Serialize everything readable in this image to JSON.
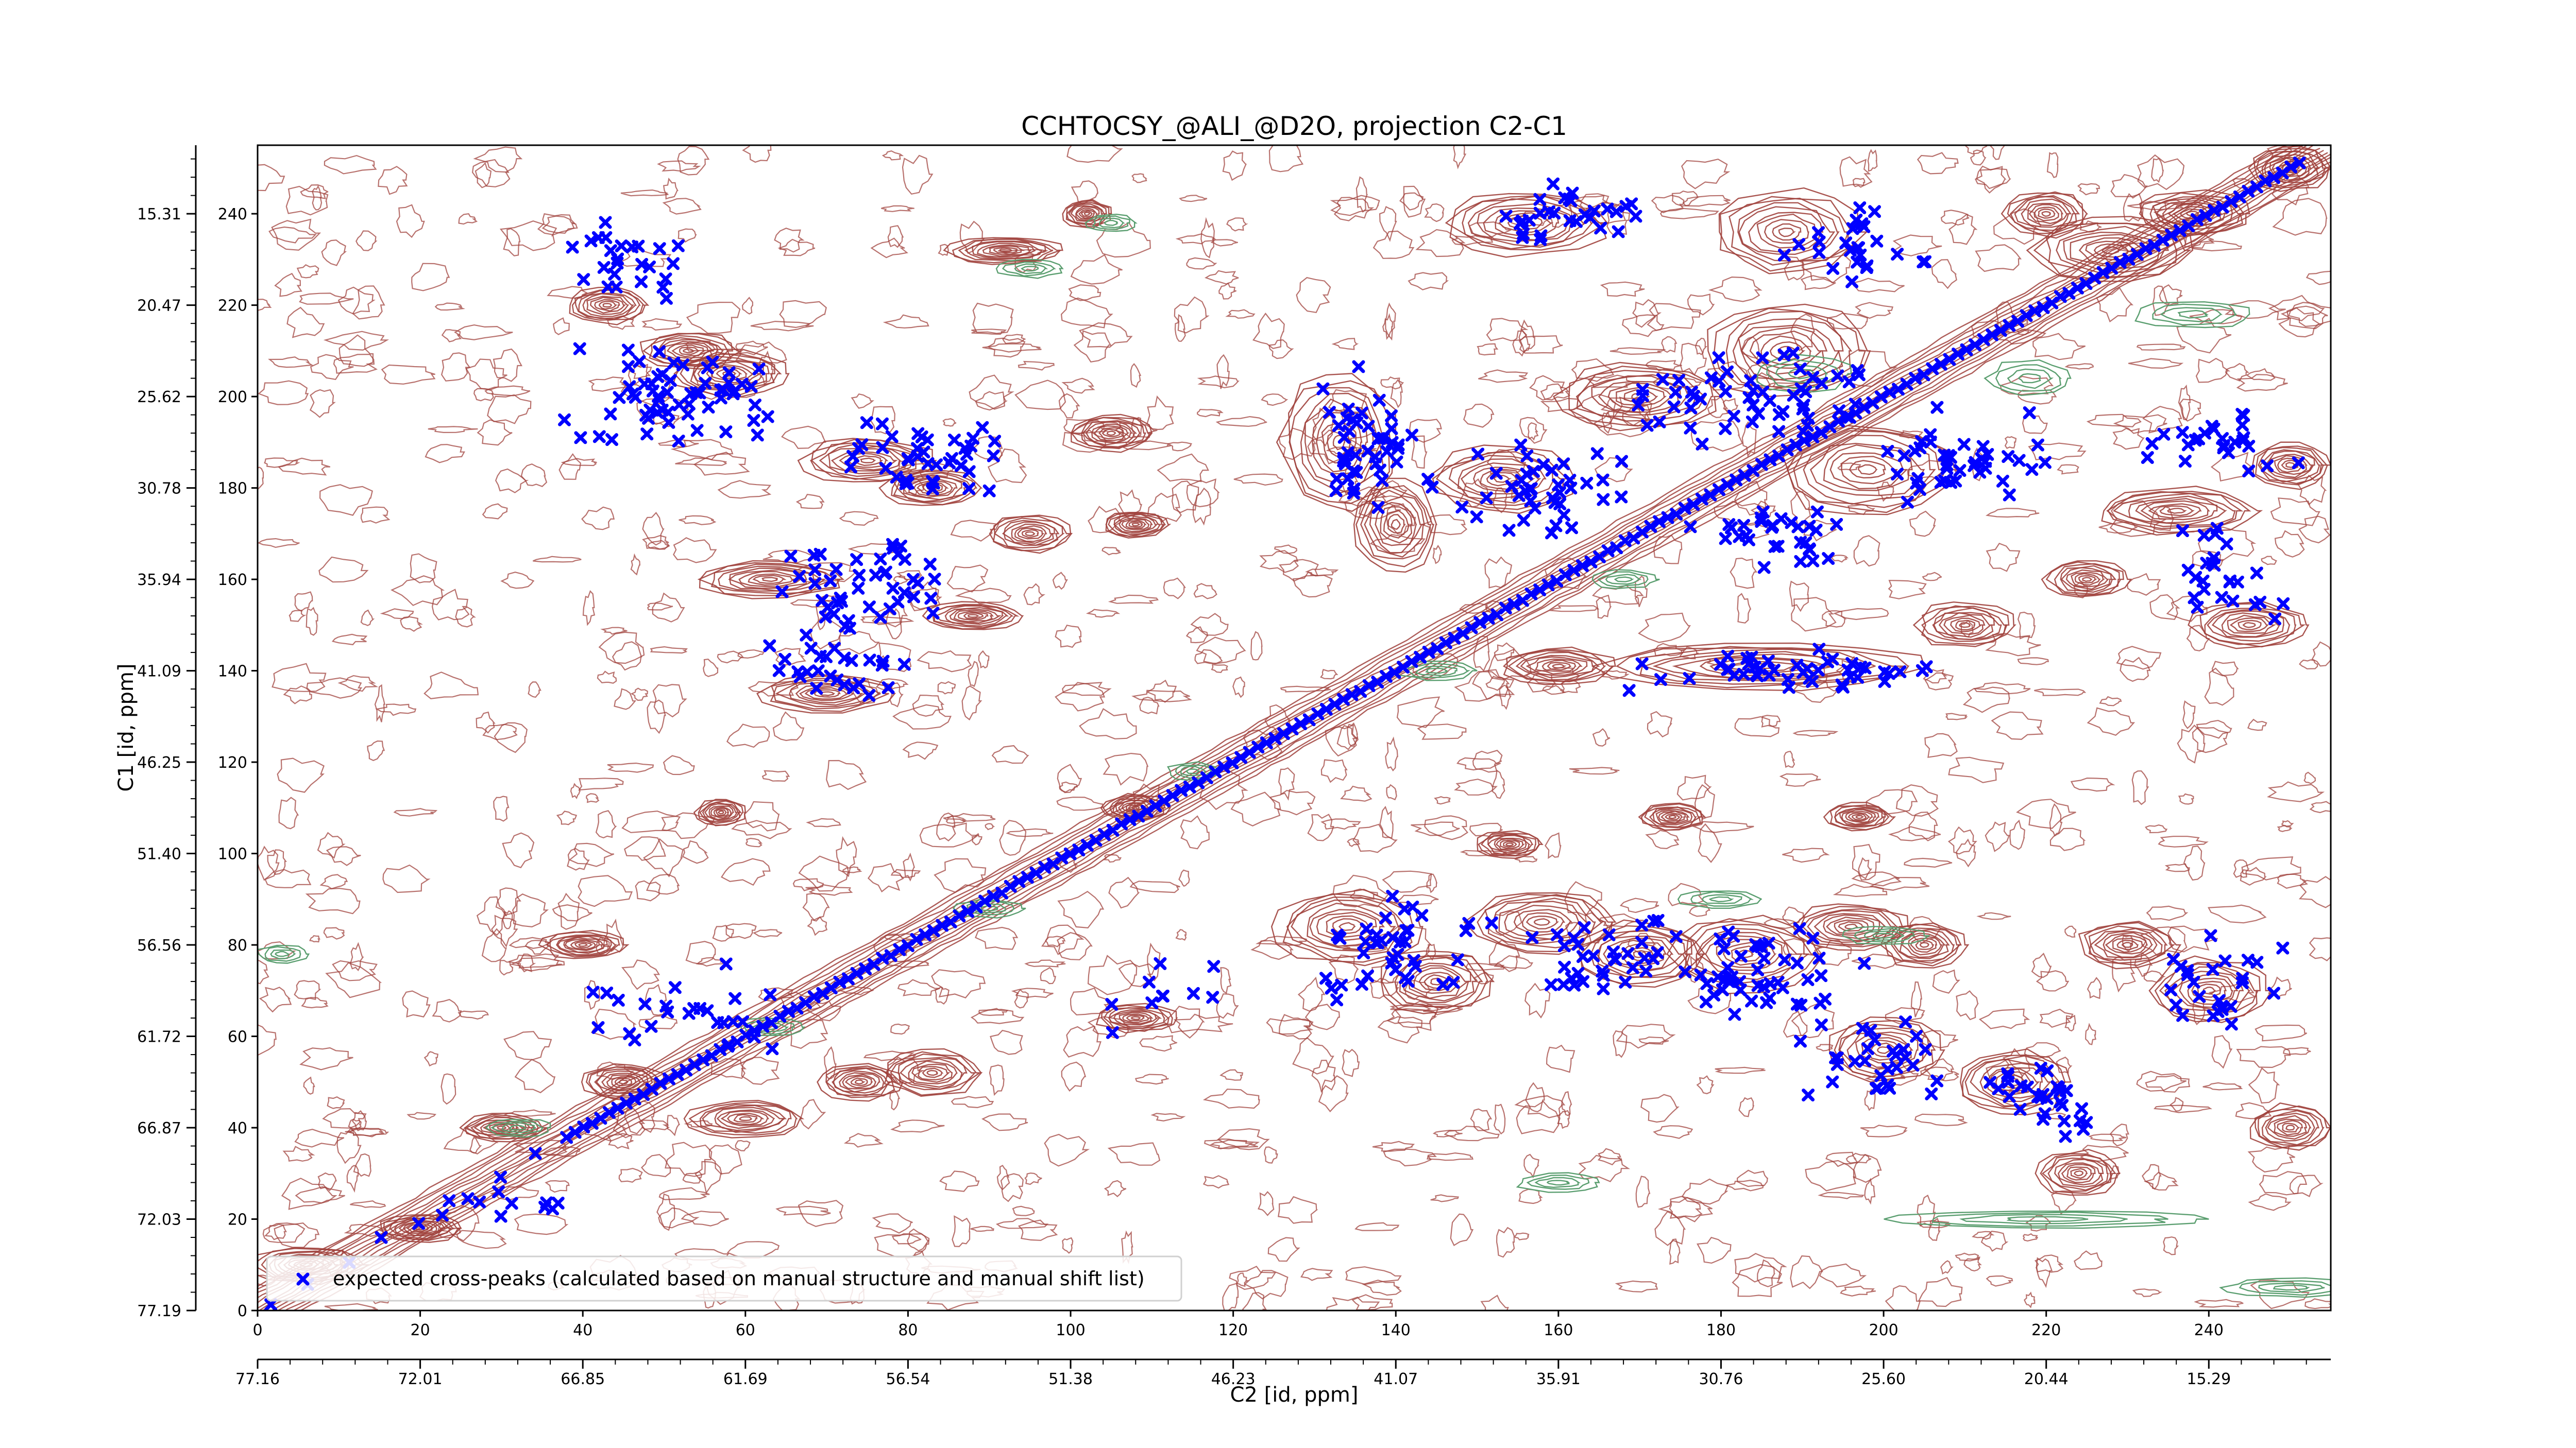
{
  "chart_data": {
    "type": "scatter",
    "title": "CCHTOCSY_@ALI_@D2O, projection C2-C1",
    "xlabel": "C2 [id, ppm]",
    "ylabel": "C1 [id, ppm]",
    "xlim": [
      0,
      255
    ],
    "ylim": [
      0,
      255
    ],
    "x_ticks": [
      0,
      20,
      40,
      60,
      80,
      100,
      120,
      140,
      160,
      180,
      200,
      220,
      240
    ],
    "y_ticks": [
      0,
      20,
      40,
      60,
      80,
      100,
      120,
      140,
      160,
      180,
      200,
      220,
      240
    ],
    "x_ppm_ticks": [
      "77.16",
      "72.01",
      "66.85",
      "61.69",
      "56.54",
      "51.38",
      "46.23",
      "41.07",
      "35.91",
      "30.76",
      "25.60",
      "20.44",
      "15.29"
    ],
    "y_ppm_ticks": [
      "77.19",
      "72.03",
      "66.87",
      "61.72",
      "56.56",
      "51.40",
      "46.25",
      "41.09",
      "35.94",
      "30.78",
      "25.62",
      "20.47",
      "15.31"
    ],
    "x_ppm_positions": [
      0,
      20,
      40,
      60,
      80,
      100,
      120,
      140,
      160,
      180,
      200,
      220,
      240
    ],
    "y_ppm_positions": [
      0,
      20,
      40,
      60,
      80,
      100,
      120,
      140,
      160,
      180,
      200,
      220,
      240
    ],
    "legend": {
      "label": "expected cross-peaks (calculated based on manual structure and manual shift list)",
      "placement": "lower-left"
    },
    "colors": {
      "markers": "#0000ff",
      "positive_contours": "#a0413c",
      "negative_contours": "#5a9e6f"
    },
    "diagonal": {
      "from": 0,
      "to": 255
    },
    "peak_clusters": [
      {
        "x": 52,
        "y": 200,
        "w": 40,
        "h": 30,
        "n": 60
      },
      {
        "x": 82,
        "y": 186,
        "w": 30,
        "h": 20,
        "n": 40
      },
      {
        "x": 76,
        "y": 160,
        "w": 35,
        "h": 30,
        "n": 45
      },
      {
        "x": 70,
        "y": 140,
        "w": 25,
        "h": 20,
        "n": 25
      },
      {
        "x": 46,
        "y": 230,
        "w": 25,
        "h": 30,
        "n": 25
      },
      {
        "x": 136,
        "y": 190,
        "w": 18,
        "h": 40,
        "n": 45
      },
      {
        "x": 158,
        "y": 180,
        "w": 30,
        "h": 30,
        "n": 40
      },
      {
        "x": 160,
        "y": 240,
        "w": 30,
        "h": 20,
        "n": 30
      },
      {
        "x": 184,
        "y": 200,
        "w": 40,
        "h": 30,
        "n": 55
      },
      {
        "x": 196,
        "y": 234,
        "w": 25,
        "h": 20,
        "n": 25
      },
      {
        "x": 210,
        "y": 186,
        "w": 30,
        "h": 30,
        "n": 40
      },
      {
        "x": 188,
        "y": 170,
        "w": 30,
        "h": 20,
        "n": 30
      },
      {
        "x": 190,
        "y": 140,
        "w": 55,
        "h": 12,
        "n": 45
      },
      {
        "x": 242,
        "y": 160,
        "w": 25,
        "h": 30,
        "n": 25
      },
      {
        "x": 242,
        "y": 190,
        "w": 25,
        "h": 20,
        "n": 25
      },
      {
        "x": 140,
        "y": 80,
        "w": 30,
        "h": 30,
        "n": 40
      },
      {
        "x": 165,
        "y": 80,
        "w": 25,
        "h": 30,
        "n": 35
      },
      {
        "x": 185,
        "y": 75,
        "w": 30,
        "h": 30,
        "n": 45
      },
      {
        "x": 200,
        "y": 55,
        "w": 25,
        "h": 30,
        "n": 30
      },
      {
        "x": 220,
        "y": 45,
        "w": 25,
        "h": 30,
        "n": 30
      },
      {
        "x": 240,
        "y": 70,
        "w": 25,
        "h": 30,
        "n": 25
      },
      {
        "x": 50,
        "y": 65,
        "w": 40,
        "h": 25,
        "n": 25
      },
      {
        "x": 110,
        "y": 70,
        "w": 20,
        "h": 25,
        "n": 10
      },
      {
        "x": 30,
        "y": 25,
        "w": 20,
        "h": 15,
        "n": 10
      }
    ],
    "contour_blobs": [
      {
        "x": 53,
        "y": 210,
        "w": 12,
        "h": 8
      },
      {
        "x": 58,
        "y": 205,
        "w": 14,
        "h": 10
      },
      {
        "x": 43,
        "y": 220,
        "w": 10,
        "h": 8
      },
      {
        "x": 92,
        "y": 232,
        "w": 14,
        "h": 6
      },
      {
        "x": 102,
        "y": 240,
        "w": 6,
        "h": 6
      },
      {
        "x": 75,
        "y": 186,
        "w": 16,
        "h": 10
      },
      {
        "x": 83,
        "y": 180,
        "w": 12,
        "h": 8
      },
      {
        "x": 95,
        "y": 170,
        "w": 10,
        "h": 8
      },
      {
        "x": 63,
        "y": 160,
        "w": 18,
        "h": 8
      },
      {
        "x": 88,
        "y": 152,
        "w": 12,
        "h": 6
      },
      {
        "x": 70,
        "y": 135,
        "w": 16,
        "h": 8
      },
      {
        "x": 105,
        "y": 192,
        "w": 10,
        "h": 8
      },
      {
        "x": 108,
        "y": 172,
        "w": 8,
        "h": 6
      },
      {
        "x": 133,
        "y": 190,
        "w": 14,
        "h": 30
      },
      {
        "x": 140,
        "y": 172,
        "w": 10,
        "h": 20
      },
      {
        "x": 153,
        "y": 182,
        "w": 18,
        "h": 14
      },
      {
        "x": 170,
        "y": 200,
        "w": 20,
        "h": 14
      },
      {
        "x": 156,
        "y": 238,
        "w": 20,
        "h": 14
      },
      {
        "x": 188,
        "y": 210,
        "w": 20,
        "h": 20
      },
      {
        "x": 198,
        "y": 184,
        "w": 22,
        "h": 20
      },
      {
        "x": 188,
        "y": 236,
        "w": 18,
        "h": 18
      },
      {
        "x": 220,
        "y": 240,
        "w": 10,
        "h": 10
      },
      {
        "x": 250,
        "y": 250,
        "w": 10,
        "h": 10
      },
      {
        "x": 160,
        "y": 141,
        "w": 14,
        "h": 8
      },
      {
        "x": 185,
        "y": 141,
        "w": 40,
        "h": 10
      },
      {
        "x": 210,
        "y": 150,
        "w": 12,
        "h": 10
      },
      {
        "x": 225,
        "y": 160,
        "w": 10,
        "h": 8
      },
      {
        "x": 236,
        "y": 175,
        "w": 20,
        "h": 10
      },
      {
        "x": 245,
        "y": 150,
        "w": 14,
        "h": 10
      },
      {
        "x": 250,
        "y": 185,
        "w": 10,
        "h": 10
      },
      {
        "x": 134,
        "y": 84,
        "w": 18,
        "h": 16
      },
      {
        "x": 145,
        "y": 72,
        "w": 14,
        "h": 14
      },
      {
        "x": 158,
        "y": 85,
        "w": 18,
        "h": 14
      },
      {
        "x": 170,
        "y": 78,
        "w": 16,
        "h": 14
      },
      {
        "x": 183,
        "y": 78,
        "w": 18,
        "h": 16
      },
      {
        "x": 196,
        "y": 84,
        "w": 14,
        "h": 10
      },
      {
        "x": 205,
        "y": 80,
        "w": 10,
        "h": 10
      },
      {
        "x": 200,
        "y": 57,
        "w": 14,
        "h": 14
      },
      {
        "x": 216,
        "y": 50,
        "w": 14,
        "h": 14
      },
      {
        "x": 224,
        "y": 30,
        "w": 10,
        "h": 10
      },
      {
        "x": 230,
        "y": 80,
        "w": 12,
        "h": 10
      },
      {
        "x": 240,
        "y": 70,
        "w": 14,
        "h": 14
      },
      {
        "x": 250,
        "y": 40,
        "w": 10,
        "h": 10
      },
      {
        "x": 174,
        "y": 108,
        "w": 8,
        "h": 6
      },
      {
        "x": 197,
        "y": 108,
        "w": 8,
        "h": 6
      },
      {
        "x": 154,
        "y": 102,
        "w": 8,
        "h": 6
      },
      {
        "x": 108,
        "y": 110,
        "w": 8,
        "h": 6
      },
      {
        "x": 57,
        "y": 109,
        "w": 6,
        "h": 6
      },
      {
        "x": 40,
        "y": 80,
        "w": 10,
        "h": 6
      },
      {
        "x": 45,
        "y": 50,
        "w": 10,
        "h": 8
      },
      {
        "x": 60,
        "y": 42,
        "w": 14,
        "h": 8
      },
      {
        "x": 30,
        "y": 40,
        "w": 10,
        "h": 6
      },
      {
        "x": 20,
        "y": 18,
        "w": 10,
        "h": 6
      },
      {
        "x": 6,
        "y": 10,
        "w": 14,
        "h": 8
      },
      {
        "x": 83,
        "y": 52,
        "w": 12,
        "h": 10
      },
      {
        "x": 74,
        "y": 50,
        "w": 10,
        "h": 8
      },
      {
        "x": 108,
        "y": 64,
        "w": 10,
        "h": 6
      },
      {
        "x": 228,
        "y": 232,
        "w": 20,
        "h": 14
      },
      {
        "x": 238,
        "y": 240,
        "w": 14,
        "h": 10
      }
    ],
    "negative_blobs": [
      {
        "x": 95,
        "y": 228,
        "w": 8,
        "h": 4
      },
      {
        "x": 105,
        "y": 238,
        "w": 6,
        "h": 4
      },
      {
        "x": 190,
        "y": 205,
        "w": 12,
        "h": 8
      },
      {
        "x": 218,
        "y": 204,
        "w": 10,
        "h": 8
      },
      {
        "x": 238,
        "y": 218,
        "w": 14,
        "h": 6
      },
      {
        "x": 145,
        "y": 140,
        "w": 10,
        "h": 4
      },
      {
        "x": 168,
        "y": 160,
        "w": 8,
        "h": 4
      },
      {
        "x": 180,
        "y": 90,
        "w": 10,
        "h": 4
      },
      {
        "x": 200,
        "y": 82,
        "w": 10,
        "h": 4
      },
      {
        "x": 220,
        "y": 20,
        "w": 40,
        "h": 4
      },
      {
        "x": 250,
        "y": 5,
        "w": 16,
        "h": 4
      },
      {
        "x": 3,
        "y": 78,
        "w": 6,
        "h": 4
      },
      {
        "x": 32,
        "y": 40,
        "w": 8,
        "h": 4
      },
      {
        "x": 63,
        "y": 62,
        "w": 8,
        "h": 4
      },
      {
        "x": 90,
        "y": 88,
        "w": 8,
        "h": 4
      },
      {
        "x": 115,
        "y": 118,
        "w": 6,
        "h": 4
      },
      {
        "x": 160,
        "y": 28,
        "w": 10,
        "h": 4
      }
    ]
  }
}
